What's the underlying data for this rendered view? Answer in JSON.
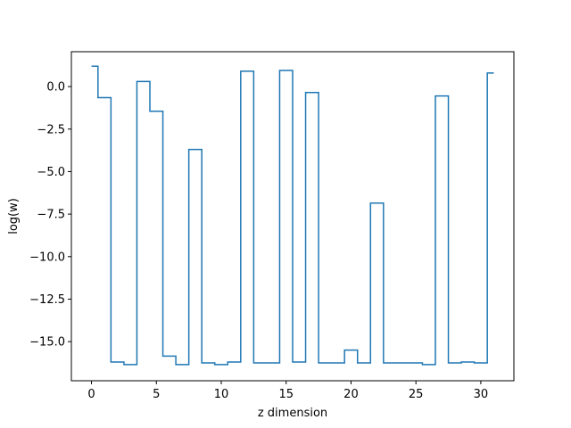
{
  "chart_data": {
    "type": "line",
    "drawstyle": "steps-mid",
    "title": "",
    "xlabel": "z dimension",
    "ylabel": "log(w)",
    "xlim": [
      -1.55,
      32.55
    ],
    "ylim": [
      -17.3,
      2.05
    ],
    "xticks": [
      0,
      5,
      10,
      15,
      20,
      25,
      30
    ],
    "xtick_labels": [
      "0",
      "5",
      "10",
      "15",
      "20",
      "25",
      "30"
    ],
    "yticks": [
      0.0,
      -2.5,
      -5.0,
      -7.5,
      -10.0,
      -12.5,
      -15.0
    ],
    "ytick_labels": [
      "0.0",
      "−2.5",
      "−5.0",
      "−7.5",
      "−10.0",
      "−12.5",
      "−15.0"
    ],
    "grid": false,
    "legend": "none",
    "series": [
      {
        "color": "#1f77b4",
        "x": [
          0,
          1,
          2,
          3,
          4,
          5,
          6,
          7,
          8,
          9,
          10,
          11,
          12,
          13,
          14,
          15,
          16,
          17,
          18,
          19,
          20,
          21,
          22,
          23,
          24,
          25,
          26,
          27,
          28,
          29,
          30,
          31
        ],
        "values": [
          1.2,
          -0.65,
          -16.2,
          -16.35,
          0.3,
          -1.45,
          -15.85,
          -16.35,
          -3.7,
          -16.25,
          -16.35,
          -16.2,
          0.9,
          -16.25,
          -16.25,
          0.95,
          -16.2,
          -0.35,
          -16.25,
          -16.25,
          -15.5,
          -16.25,
          -6.85,
          -16.25,
          -16.25,
          -16.25,
          -16.35,
          -0.55,
          -16.25,
          -16.2,
          -16.25,
          0.8
        ]
      }
    ]
  }
}
